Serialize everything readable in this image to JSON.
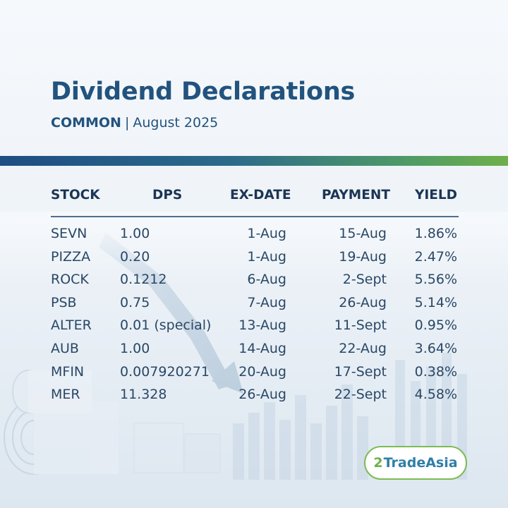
{
  "header": {
    "title": "Dividend Declarations",
    "subtitle_category": "COMMON",
    "subtitle_separator": "|",
    "subtitle_period": "August 2025"
  },
  "table": {
    "columns": [
      "STOCK",
      "DPS",
      "EX-DATE",
      "PAYMENT",
      "YIELD"
    ],
    "rows": [
      {
        "stock": "SEVN",
        "dps": "1.00",
        "ex_date": "1-Aug",
        "payment": "15-Aug",
        "yield": "1.86%"
      },
      {
        "stock": "PIZZA",
        "dps": "0.20",
        "ex_date": "1-Aug",
        "payment": "19-Aug",
        "yield": "2.47%"
      },
      {
        "stock": "ROCK",
        "dps": "0.1212",
        "ex_date": "6-Aug",
        "payment": "2-Sept",
        "yield": "5.56%"
      },
      {
        "stock": "PSB",
        "dps": "0.75",
        "ex_date": "7-Aug",
        "payment": "26-Aug",
        "yield": "5.14%"
      },
      {
        "stock": "ALTER",
        "dps": "0.01 (special)",
        "ex_date": "13-Aug",
        "payment": "11-Sept",
        "yield": "0.95%"
      },
      {
        "stock": "AUB",
        "dps": "1.00",
        "ex_date": "14-Aug",
        "payment": "22-Aug",
        "yield": "3.64%"
      },
      {
        "stock": "MFIN",
        "dps": "0.007920271",
        "ex_date": "20-Aug",
        "payment": "17-Sept",
        "yield": "0.38%"
      },
      {
        "stock": "MER",
        "dps": "11.328",
        "ex_date": "26-Aug",
        "payment": "22-Sept",
        "yield": "4.58%"
      }
    ]
  },
  "logo": {
    "mark": "2",
    "text": "TradeAsia"
  },
  "colors": {
    "title": "#22537e",
    "band_start": "#1e4d83",
    "band_end": "#6fb04a",
    "logo_border": "#7dbb55"
  }
}
